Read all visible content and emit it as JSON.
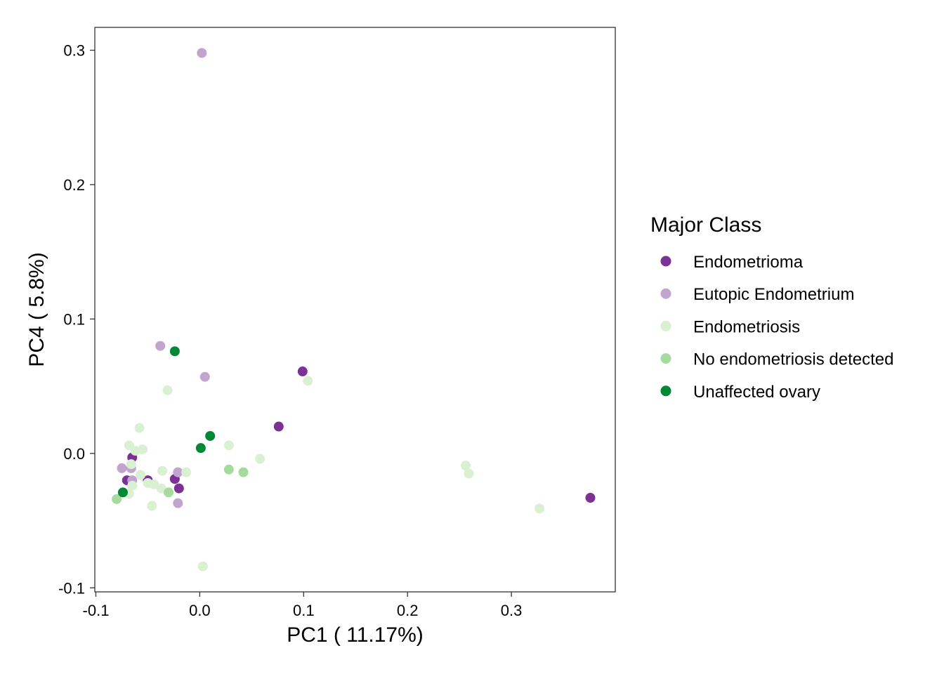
{
  "chart_data": {
    "type": "scatter",
    "xlabel": "PC1 ( 11.17%)",
    "ylabel": "PC4 ( 5.8%)",
    "xlim": [
      -0.101,
      0.4
    ],
    "ylim": [
      -0.103,
      0.317
    ],
    "xticks": [
      -0.1,
      0.0,
      0.1,
      0.2,
      0.3
    ],
    "xtick_labels": [
      "-0.1",
      "0.0",
      "0.1",
      "0.2",
      "0.3"
    ],
    "yticks": [
      -0.1,
      0.0,
      0.1,
      0.2,
      0.3
    ],
    "ytick_labels": [
      "-0.1",
      "0.0",
      "0.1",
      "0.2",
      "0.3"
    ],
    "grid": false,
    "legend": {
      "title": "Major Class",
      "placement": "right"
    },
    "series": [
      {
        "name": "Endometrioma",
        "color": "#7B3294",
        "points": [
          [
            0.099,
            0.061
          ],
          [
            0.076,
            0.02
          ],
          [
            0.376,
            -0.033
          ],
          [
            -0.065,
            -0.003
          ],
          [
            -0.07,
            -0.02
          ],
          [
            -0.05,
            -0.02
          ],
          [
            -0.024,
            -0.019
          ],
          [
            -0.02,
            -0.026
          ]
        ]
      },
      {
        "name": "Eutopic Endometrium",
        "color": "#C2A5CF",
        "points": [
          [
            0.002,
            0.298
          ],
          [
            -0.038,
            0.08
          ],
          [
            0.005,
            0.057
          ],
          [
            -0.075,
            -0.011
          ],
          [
            -0.066,
            -0.011
          ],
          [
            -0.065,
            -0.02
          ],
          [
            -0.021,
            -0.014
          ],
          [
            -0.021,
            -0.037
          ]
        ]
      },
      {
        "name": "Endometriosis",
        "color": "#D9F0D3",
        "points": [
          [
            0.104,
            0.054
          ],
          [
            -0.031,
            0.047
          ],
          [
            -0.058,
            0.019
          ],
          [
            -0.068,
            0.006
          ],
          [
            -0.055,
            0.003
          ],
          [
            -0.062,
            0.002
          ],
          [
            0.028,
            0.006
          ],
          [
            0.058,
            -0.004
          ],
          [
            -0.066,
            -0.008
          ],
          [
            -0.057,
            -0.016
          ],
          [
            -0.036,
            -0.013
          ],
          [
            -0.013,
            -0.014
          ],
          [
            -0.05,
            -0.022
          ],
          [
            -0.044,
            -0.023
          ],
          [
            -0.037,
            -0.026
          ],
          [
            -0.065,
            -0.024
          ],
          [
            -0.068,
            -0.03
          ],
          [
            -0.046,
            -0.039
          ],
          [
            0.256,
            -0.009
          ],
          [
            0.259,
            -0.015
          ],
          [
            0.327,
            -0.041
          ],
          [
            0.003,
            -0.084
          ]
        ]
      },
      {
        "name": "No endometriosis detected",
        "color": "#A6DBA0",
        "points": [
          [
            0.028,
            -0.012
          ],
          [
            0.042,
            -0.014
          ],
          [
            -0.03,
            -0.029
          ],
          [
            -0.08,
            -0.034
          ]
        ]
      },
      {
        "name": "Unaffected ovary",
        "color": "#008837",
        "points": [
          [
            -0.024,
            0.076
          ],
          [
            0.01,
            0.013
          ],
          [
            0.001,
            0.004
          ],
          [
            -0.074,
            -0.029
          ]
        ]
      }
    ]
  }
}
